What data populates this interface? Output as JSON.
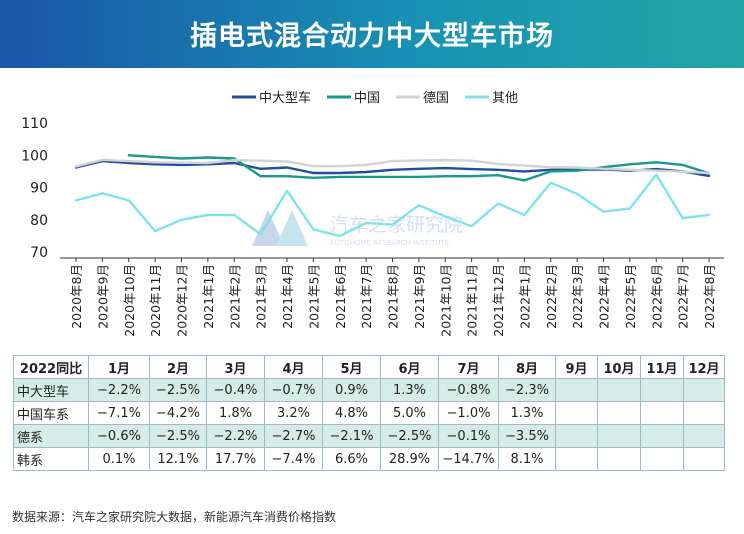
{
  "title": "插电式混合动力中大型车市场",
  "watermark": {
    "cn": "汽车之家研究院",
    "en": "AUTOHOME RESEARCH INSTITUTE"
  },
  "chart_data": {
    "type": "line",
    "legend_position": "top",
    "x": [
      "2020年8月",
      "2020年9月",
      "2020年10月",
      "2020年11月",
      "2020年12月",
      "2021年1月",
      "2021年2月",
      "2021年3月",
      "2021年4月",
      "2021年5月",
      "2021年6月",
      "2021年7月",
      "2021年8月",
      "2021年9月",
      "2021年10月",
      "2021年11月",
      "2021年12月",
      "2022年1月",
      "2022年2月",
      "2022年3月",
      "2022年4月",
      "2022年5月",
      "2022年6月",
      "2022年7月",
      "2022年8月"
    ],
    "ylim": [
      70,
      110
    ],
    "yticks": [
      70,
      80,
      90,
      100,
      110
    ],
    "grid": false,
    "series": [
      {
        "name": "中大型车",
        "color": "#1f4e9c",
        "values": [
          96.2,
          98.2,
          97.6,
          97.2,
          97.0,
          97.2,
          97.6,
          95.8,
          96.2,
          94.5,
          94.5,
          94.8,
          95.5,
          95.8,
          96.0,
          95.7,
          95.5,
          95.0,
          95.5,
          95.5,
          95.6,
          95.2,
          95.7,
          95.0,
          93.6
        ]
      },
      {
        "name": "中国",
        "color": "#1a9a8c",
        "values": [
          null,
          null,
          100.0,
          99.5,
          99.0,
          99.3,
          99.0,
          93.5,
          93.5,
          93.0,
          93.3,
          93.3,
          93.3,
          93.3,
          93.5,
          93.5,
          93.8,
          92.2,
          95.0,
          95.2,
          96.3,
          97.2,
          97.8,
          97.0,
          94.4
        ]
      },
      {
        "name": "德国",
        "color": "#d3d3d3",
        "values": [
          96.5,
          98.6,
          98.2,
          97.8,
          97.7,
          97.6,
          98.5,
          98.3,
          98.1,
          96.6,
          96.6,
          97.0,
          98.2,
          98.4,
          98.5,
          98.3,
          97.3,
          96.8,
          96.3,
          96.2,
          95.8,
          95.5,
          95.2,
          94.9,
          94.5
        ]
      },
      {
        "name": "其他",
        "color": "#7fe3ec",
        "values": [
          86.0,
          88.2,
          86.0,
          76.5,
          80.0,
          81.5,
          81.5,
          75.5,
          89.0,
          77.0,
          75.0,
          79.0,
          78.5,
          84.5,
          81.0,
          78.0,
          85.0,
          81.5,
          91.5,
          88.0,
          82.5,
          83.5,
          94.0,
          80.5,
          81.5
        ]
      }
    ]
  },
  "table": {
    "header": [
      "2022同比",
      "1月",
      "2月",
      "3月",
      "4月",
      "5月",
      "6月",
      "7月",
      "8月",
      "9月",
      "10月",
      "11月",
      "12月"
    ],
    "rows": [
      {
        "label": "中大型车",
        "cells": [
          "−2.2%",
          "−2.5%",
          "−0.4%",
          "−0.7%",
          "0.9%",
          "1.3%",
          "−0.8%",
          "−2.3%",
          "",
          "",
          "",
          ""
        ]
      },
      {
        "label": "中国车系",
        "cells": [
          "−7.1%",
          "−4.2%",
          "1.8%",
          "3.2%",
          "4.8%",
          "5.0%",
          "−1.0%",
          "1.3%",
          "",
          "",
          "",
          ""
        ]
      },
      {
        "label": "德系",
        "cells": [
          "−0.6%",
          "−2.5%",
          "−2.2%",
          "−2.7%",
          "−2.1%",
          "−2.5%",
          "−0.1%",
          "−3.5%",
          "",
          "",
          "",
          ""
        ]
      },
      {
        "label": "韩系",
        "cells": [
          "0.1%",
          "12.1%",
          "17.7%",
          "−7.4%",
          "6.6%",
          "28.9%",
          "−14.7%",
          "8.1%",
          "",
          "",
          "",
          ""
        ]
      }
    ]
  },
  "footer": "数据来源：汽车之家研究院大数据，新能源汽车消费价格指数"
}
